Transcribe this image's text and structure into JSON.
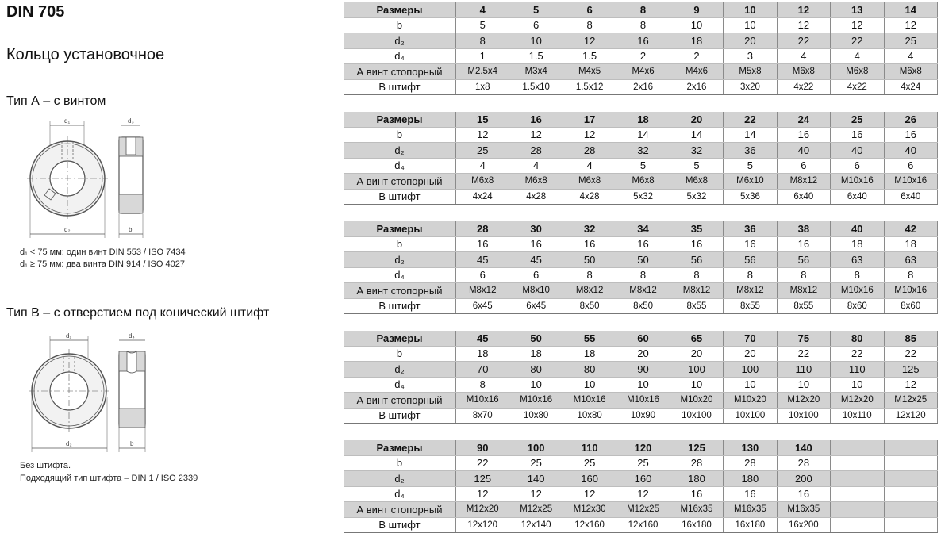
{
  "header": {
    "title": "DIN 705",
    "subtitle": "Кольцо установочное"
  },
  "type_a": {
    "heading": "Тип А – с винтом",
    "labels": {
      "d1": "d₁",
      "d3": "d₃",
      "d2": "d₂",
      "b": "b"
    },
    "notes": [
      "d₁ < 75 мм: один винт DIN 553 / ISO 7434",
      "d₁ ≥ 75 мм: два винта DIN 914 / ISO 4027"
    ]
  },
  "type_b": {
    "heading": "Тип B – с отверстием под конический штифт",
    "labels": {
      "d1": "d₁",
      "d4": "d₄",
      "d2": "d₂",
      "b": "b"
    },
    "notes": [
      "Без штифта.",
      "Подходящий тип штифта – DIN 1 / ISO 2339"
    ]
  },
  "row_labels": [
    "Размеры",
    "b",
    "d₂",
    "d₄",
    "А винт стопорный",
    "В штифт"
  ],
  "tables": [
    {
      "sizes": [
        "4",
        "5",
        "6",
        "8",
        "9",
        "10",
        "12",
        "13",
        "14"
      ],
      "b": [
        "5",
        "6",
        "8",
        "8",
        "10",
        "10",
        "12",
        "12",
        "12"
      ],
      "d2": [
        "8",
        "10",
        "12",
        "16",
        "18",
        "20",
        "22",
        "22",
        "25"
      ],
      "d4": [
        "1",
        "1.5",
        "1.5",
        "2",
        "2",
        "3",
        "4",
        "4",
        "4"
      ],
      "screw": [
        "M2.5x4",
        "M3x4",
        "M4x5",
        "M4x6",
        "M4x6",
        "M5x8",
        "M6x8",
        "M6x8",
        "M6x8"
      ],
      "pin": [
        "1x8",
        "1.5x10",
        "1.5x12",
        "2x16",
        "2x16",
        "3x20",
        "4x22",
        "4x22",
        "4x24"
      ]
    },
    {
      "sizes": [
        "15",
        "16",
        "17",
        "18",
        "20",
        "22",
        "24",
        "25",
        "26"
      ],
      "b": [
        "12",
        "12",
        "12",
        "14",
        "14",
        "14",
        "16",
        "16",
        "16"
      ],
      "d2": [
        "25",
        "28",
        "28",
        "32",
        "32",
        "36",
        "40",
        "40",
        "40"
      ],
      "d4": [
        "4",
        "4",
        "4",
        "5",
        "5",
        "5",
        "6",
        "6",
        "6"
      ],
      "screw": [
        "M6x8",
        "M6x8",
        "M6x8",
        "M6x8",
        "M6x8",
        "M6x10",
        "M8x12",
        "M10x16",
        "M10x16"
      ],
      "pin": [
        "4x24",
        "4x28",
        "4x28",
        "5x32",
        "5x32",
        "5x36",
        "6x40",
        "6x40",
        "6x40"
      ]
    },
    {
      "sizes": [
        "28",
        "30",
        "32",
        "34",
        "35",
        "36",
        "38",
        "40",
        "42"
      ],
      "b": [
        "16",
        "16",
        "16",
        "16",
        "16",
        "16",
        "16",
        "18",
        "18"
      ],
      "d2": [
        "45",
        "45",
        "50",
        "50",
        "56",
        "56",
        "56",
        "63",
        "63"
      ],
      "d4": [
        "6",
        "6",
        "8",
        "8",
        "8",
        "8",
        "8",
        "8",
        "8"
      ],
      "screw": [
        "M8x12",
        "M8x10",
        "M8x12",
        "M8x12",
        "M8x12",
        "M8x12",
        "M8x12",
        "M10x16",
        "M10x16"
      ],
      "pin": [
        "6x45",
        "6x45",
        "8x50",
        "8x50",
        "8x55",
        "8x55",
        "8x55",
        "8x60",
        "8x60"
      ]
    },
    {
      "sizes": [
        "45",
        "50",
        "55",
        "60",
        "65",
        "70",
        "75",
        "80",
        "85"
      ],
      "b": [
        "18",
        "18",
        "18",
        "20",
        "20",
        "20",
        "22",
        "22",
        "22"
      ],
      "d2": [
        "70",
        "80",
        "80",
        "90",
        "100",
        "100",
        "110",
        "110",
        "125"
      ],
      "d4": [
        "8",
        "10",
        "10",
        "10",
        "10",
        "10",
        "10",
        "10",
        "12"
      ],
      "screw": [
        "M10x16",
        "M10x16",
        "M10x16",
        "M10x16",
        "M10x20",
        "M10x20",
        "M12x20",
        "M12x20",
        "M12x25"
      ],
      "pin": [
        "8x70",
        "10x80",
        "10x80",
        "10x90",
        "10x100",
        "10x100",
        "10x100",
        "10x110",
        "12x120"
      ]
    },
    {
      "sizes": [
        "90",
        "100",
        "110",
        "120",
        "125",
        "130",
        "140",
        "",
        ""
      ],
      "b": [
        "22",
        "25",
        "25",
        "25",
        "28",
        "28",
        "28",
        "",
        ""
      ],
      "d2": [
        "125",
        "140",
        "160",
        "160",
        "180",
        "180",
        "200",
        "",
        ""
      ],
      "d4": [
        "12",
        "12",
        "12",
        "12",
        "16",
        "16",
        "16",
        "",
        ""
      ],
      "screw": [
        "M12x20",
        "M12x25",
        "M12x30",
        "M12x25",
        "M16x35",
        "M16x35",
        "M16x35",
        "",
        ""
      ],
      "pin": [
        "12x120",
        "12x140",
        "12x160",
        "12x160",
        "16x180",
        "16x180",
        "16x200",
        "",
        ""
      ]
    }
  ]
}
